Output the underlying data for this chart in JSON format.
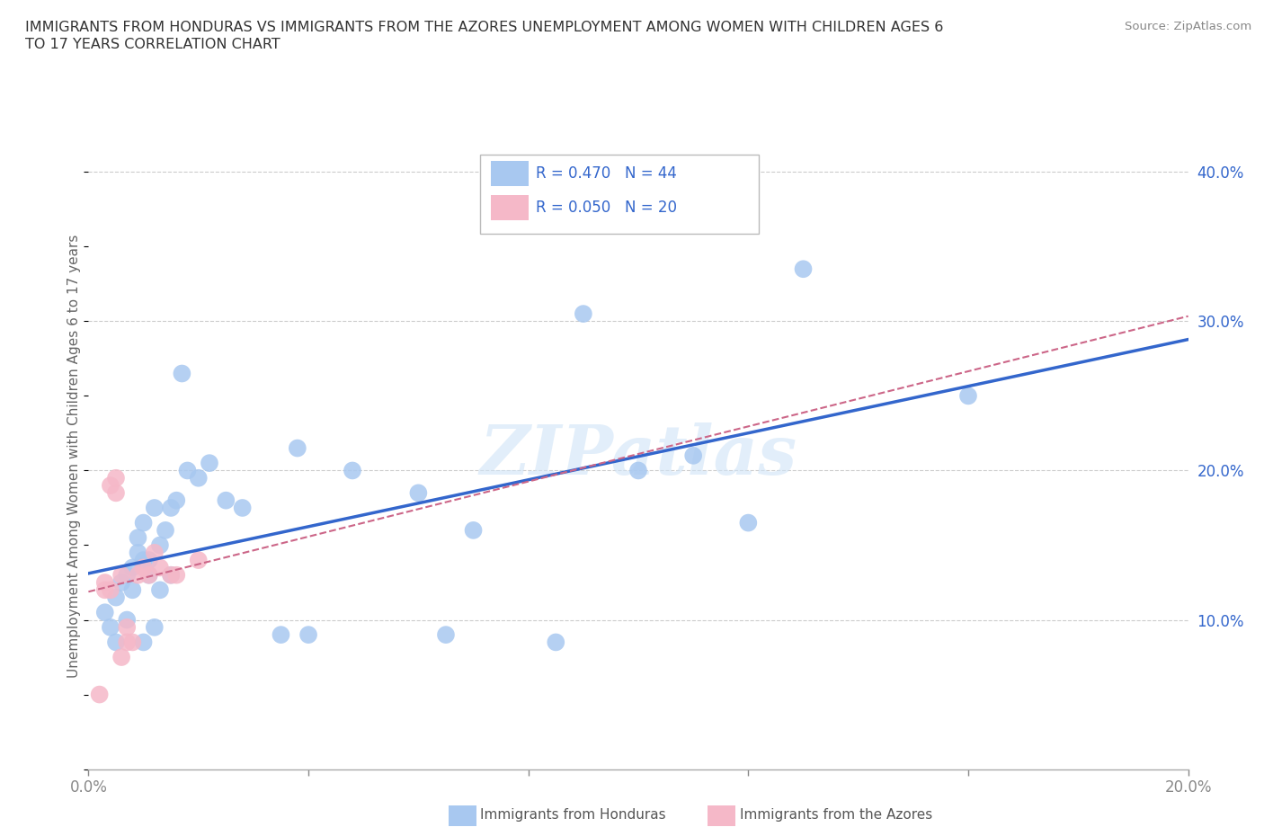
{
  "title_line1": "IMMIGRANTS FROM HONDURAS VS IMMIGRANTS FROM THE AZORES UNEMPLOYMENT AMONG WOMEN WITH CHILDREN AGES 6",
  "title_line2": "TO 17 YEARS CORRELATION CHART",
  "source": "Source: ZipAtlas.com",
  "ylabel": "Unemployment Among Women with Children Ages 6 to 17 years",
  "xlim": [
    0.0,
    0.2
  ],
  "ylim": [
    0.0,
    0.42
  ],
  "xticks": [
    0.0,
    0.04,
    0.08,
    0.12,
    0.16,
    0.2
  ],
  "yticks": [
    0.1,
    0.2,
    0.3,
    0.4
  ],
  "ytick_labels": [
    "10.0%",
    "20.0%",
    "30.0%",
    "40.0%"
  ],
  "xtick_labels_pos": [
    0.0,
    0.2
  ],
  "xtick_labels_val": [
    "0.0%",
    "20.0%"
  ],
  "legend_r1": "R = 0.470",
  "legend_n1": "N = 44",
  "legend_r2": "R = 0.050",
  "legend_n2": "N = 20",
  "color_honduras": "#A8C8F0",
  "color_azores": "#F5B8C8",
  "line_color_honduras": "#3366CC",
  "line_color_azores": "#CC6688",
  "legend_text_color": "#3366CC",
  "watermark": "ZIPatlas",
  "background_color": "#ffffff",
  "honduras_x": [
    0.003,
    0.004,
    0.005,
    0.005,
    0.006,
    0.007,
    0.007,
    0.008,
    0.008,
    0.009,
    0.009,
    0.01,
    0.01,
    0.01,
    0.011,
    0.011,
    0.012,
    0.012,
    0.013,
    0.013,
    0.014,
    0.015,
    0.015,
    0.016,
    0.017,
    0.018,
    0.02,
    0.022,
    0.025,
    0.028,
    0.035,
    0.038,
    0.04,
    0.048,
    0.06,
    0.065,
    0.07,
    0.085,
    0.09,
    0.1,
    0.11,
    0.12,
    0.13,
    0.16
  ],
  "honduras_y": [
    0.105,
    0.095,
    0.115,
    0.085,
    0.125,
    0.13,
    0.1,
    0.135,
    0.12,
    0.145,
    0.155,
    0.14,
    0.165,
    0.085,
    0.14,
    0.13,
    0.175,
    0.095,
    0.15,
    0.12,
    0.16,
    0.175,
    0.13,
    0.18,
    0.265,
    0.2,
    0.195,
    0.205,
    0.18,
    0.175,
    0.09,
    0.215,
    0.09,
    0.2,
    0.185,
    0.09,
    0.16,
    0.085,
    0.305,
    0.2,
    0.21,
    0.165,
    0.335,
    0.25
  ],
  "azores_x": [
    0.002,
    0.003,
    0.003,
    0.004,
    0.004,
    0.005,
    0.005,
    0.006,
    0.006,
    0.007,
    0.007,
    0.008,
    0.009,
    0.01,
    0.011,
    0.012,
    0.013,
    0.015,
    0.016,
    0.02
  ],
  "azores_y": [
    0.05,
    0.12,
    0.125,
    0.12,
    0.19,
    0.185,
    0.195,
    0.075,
    0.13,
    0.095,
    0.085,
    0.085,
    0.13,
    0.135,
    0.13,
    0.145,
    0.135,
    0.13,
    0.13,
    0.14
  ]
}
